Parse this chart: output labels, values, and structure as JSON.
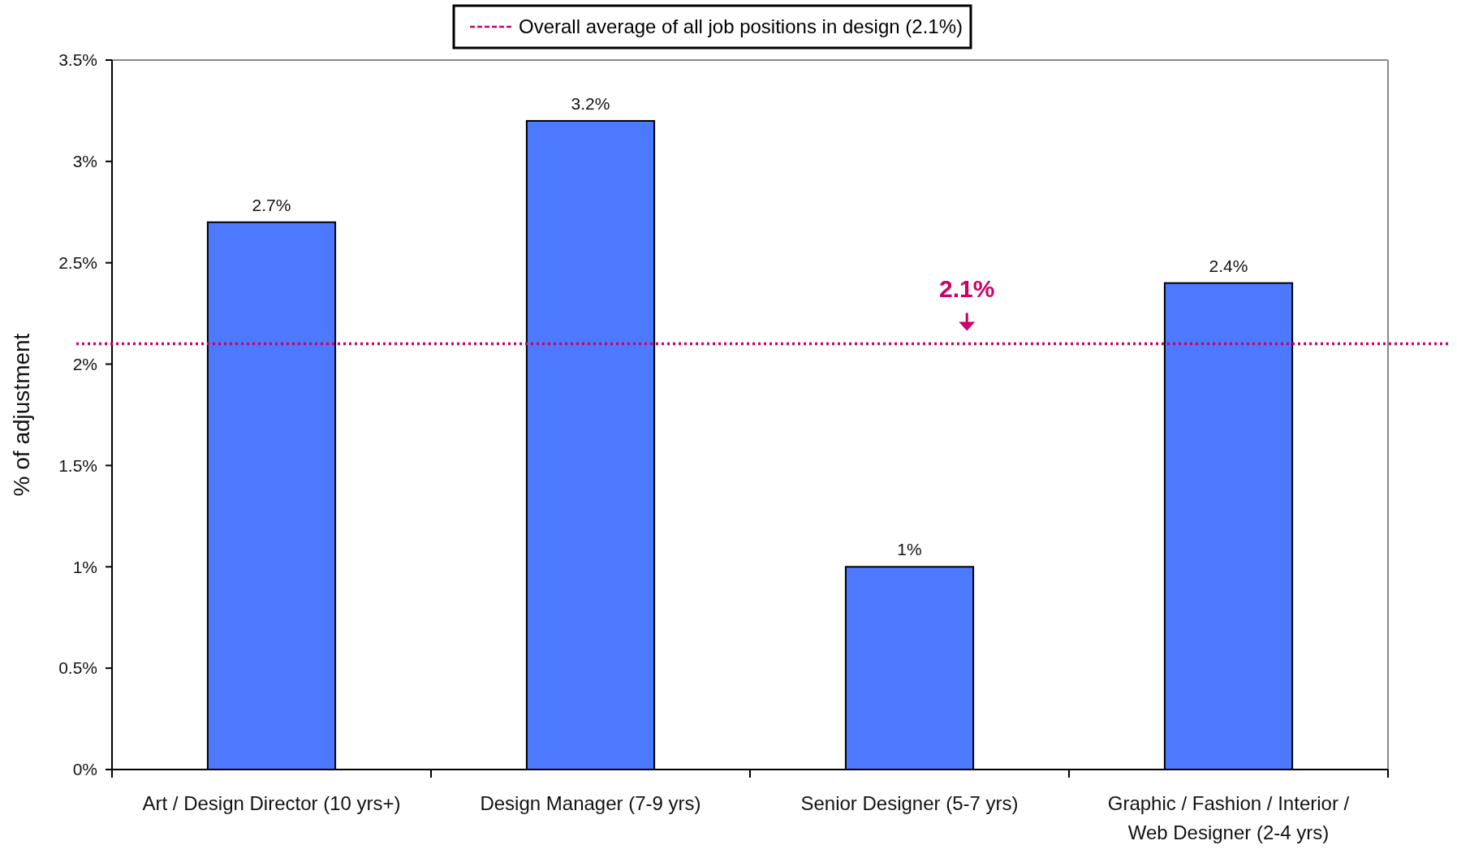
{
  "chart_data": {
    "type": "bar",
    "categories": [
      "Art / Design Director (10 yrs+)",
      "Design Manager (7-9 yrs)",
      "Senior Designer (5-7 yrs)",
      "Graphic / Fashion / Interior / Web Designer (2-4 yrs)"
    ],
    "values": [
      2.7,
      3.2,
      1,
      2.4
    ],
    "color": "#4d79ff",
    "value_labels": [
      "2.7%",
      "3.2%",
      "1%",
      "2.4%"
    ],
    "ylabel": "% of adjustment",
    "ylim": [
      0,
      3.5
    ],
    "yticks": [
      {
        "value": 0,
        "label": "0%"
      },
      {
        "value": 0.5,
        "label": "0.5%"
      },
      {
        "value": 1,
        "label": "1%"
      },
      {
        "value": 1.5,
        "label": "1.5%"
      },
      {
        "value": 2,
        "label": "2%"
      },
      {
        "value": 2.5,
        "label": "2.5%"
      },
      {
        "value": 3,
        "label": "3%"
      },
      {
        "value": 3.5,
        "label": "3.5%"
      }
    ],
    "ref_lines": [
      {
        "axis": "y",
        "value": 2.1,
        "label": "Overall average of all job positions in design (2.1%)",
        "color": "#cc0066",
        "line_style": "dotted"
      }
    ],
    "annotations": [
      {
        "text": "2.1%",
        "y": 2.1
      }
    ],
    "legend": "top",
    "grid": false
  }
}
